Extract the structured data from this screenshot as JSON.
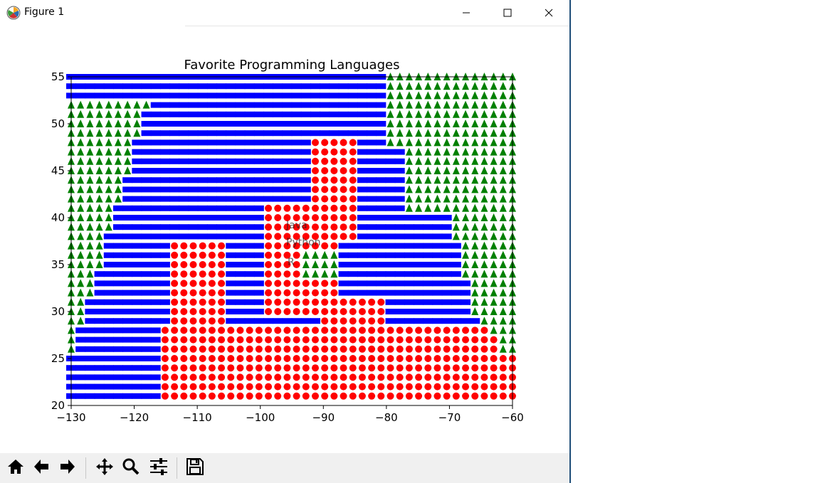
{
  "window": {
    "title": "Figure 1"
  },
  "icons": {
    "app": "matplotlib-figure-icon",
    "minimize": "minimize-icon",
    "maximize": "maximize-icon",
    "close": "close-icon"
  },
  "toolbar": {
    "buttons": [
      {
        "name": "home-button",
        "icon": "home-icon"
      },
      {
        "name": "back-button",
        "icon": "back-arrow-icon"
      },
      {
        "name": "forward-button",
        "icon": "forward-arrow-icon"
      },
      {
        "name": "pan-button",
        "icon": "pan-move-icon"
      },
      {
        "name": "zoom-button",
        "icon": "zoom-magnifier-icon"
      },
      {
        "name": "configure-subplots-button",
        "icon": "sliders-icon"
      },
      {
        "name": "save-button",
        "icon": "save-disk-icon"
      }
    ]
  },
  "colors": {
    "java": "#0000ff",
    "python": "#ff0000",
    "r": "#008000"
  },
  "chart_data": {
    "type": "scatter",
    "title": "Favorite Programming Languages",
    "xlabel": "",
    "ylabel": "",
    "xlim": [
      -130,
      -60
    ],
    "ylim": [
      20,
      55
    ],
    "xticks": [
      "−130",
      "−120",
      "−110",
      "−100",
      "−90",
      "−80",
      "−70",
      "−60"
    ],
    "yticks": [
      "20",
      "25",
      "30",
      "35",
      "40",
      "45",
      "50",
      "55"
    ],
    "grid": false,
    "legend": "none",
    "series": [
      {
        "marker": "square",
        "color": "#0000ff",
        "regions": "west of about -80 in the north, western coastal belt in the south"
      },
      {
        "marker": "circle",
        "color": "#ff0000",
        "regions": "southwest lower region from -115 to -60 below 30, central plains and midwest"
      },
      {
        "marker": "triangle",
        "color": "#008000",
        "regions": "east of -80 in the north, western triangular edge, small pocket near -90, 35"
      }
    ],
    "annotations": [
      "Java",
      "Python",
      "R"
    ]
  }
}
